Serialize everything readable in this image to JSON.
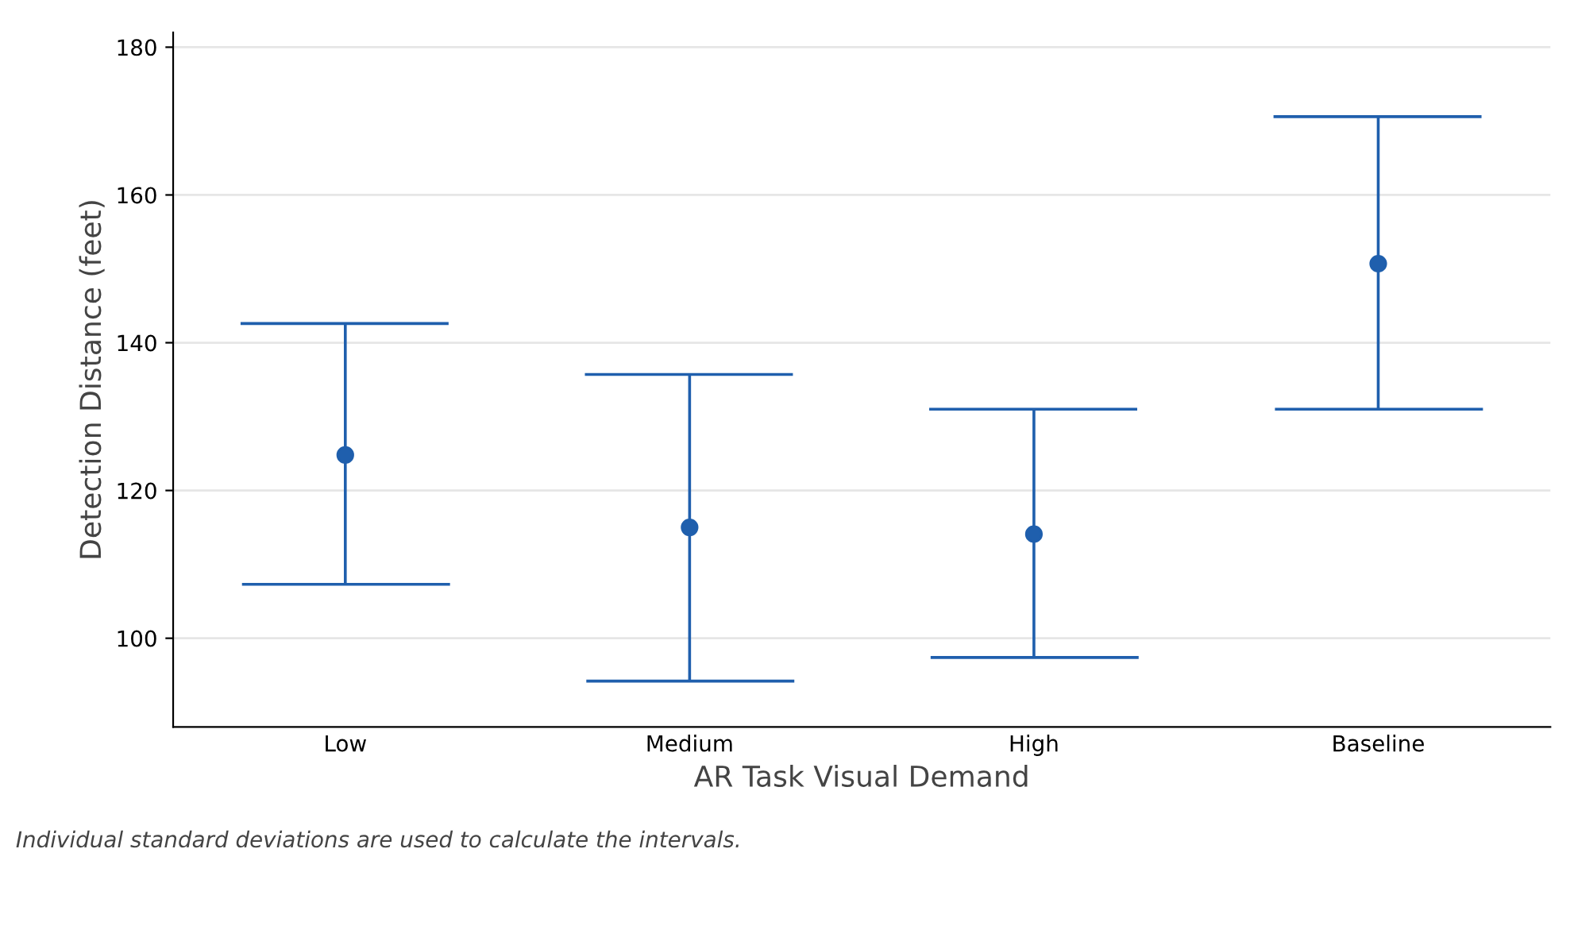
{
  "chart_data": {
    "type": "scatter",
    "xlabel": "AR Task Visual Demand",
    "ylabel": "Detection Distance (feet)",
    "categories": [
      "Low",
      "Medium",
      "High",
      "Baseline"
    ],
    "series": [
      {
        "color": "#1f5fad",
        "values": [
          124.8,
          115.0,
          114.1,
          150.7
        ],
        "errors": [
          [
            107.3,
            142.6
          ],
          [
            94.2,
            135.7
          ],
          [
            97.4,
            131.0
          ],
          [
            131.0,
            170.6
          ]
        ]
      }
    ],
    "ylim": [
      88,
      182
    ],
    "yticks": [
      100,
      120,
      140,
      160,
      180
    ],
    "grid": "y",
    "marker": "circle",
    "legend": false,
    "annotations": [
      "Individual standard deviations are used to calculate the intervals."
    ]
  }
}
